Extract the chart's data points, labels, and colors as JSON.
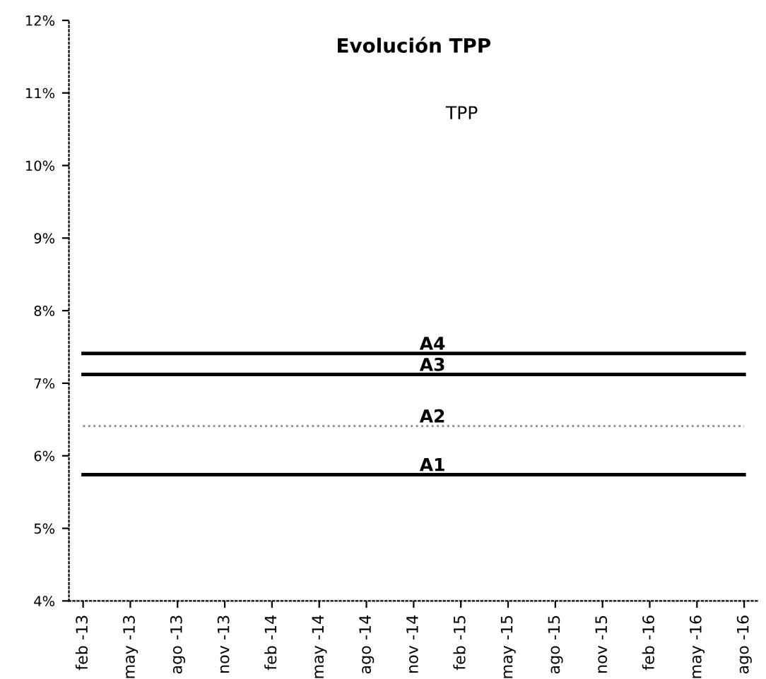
{
  "chart_data": {
    "type": "line",
    "title": "Evolución TPP",
    "categories": [
      "feb -13",
      "may -13",
      "ago -13",
      "nov -13",
      "feb -14",
      "may -14",
      "ago -14",
      "nov -14",
      "feb -15",
      "may -15",
      "ago -15",
      "nov -15",
      "feb -16",
      "may -16",
      "ago -16"
    ],
    "series": [
      {
        "name": "A4",
        "color": "#000000",
        "line_style": "solid",
        "values": [
          7.41,
          7.41,
          7.41,
          7.41,
          7.41,
          7.41,
          7.41,
          7.41,
          7.41,
          7.41,
          7.41,
          7.41,
          7.41,
          7.41,
          7.41
        ]
      },
      {
        "name": "A3",
        "color": "#000000",
        "line_style": "solid",
        "values": [
          7.12,
          7.12,
          7.12,
          7.12,
          7.12,
          7.12,
          7.12,
          7.12,
          7.12,
          7.12,
          7.12,
          7.12,
          7.12,
          7.12,
          7.12
        ]
      },
      {
        "name": "A2",
        "color": "#888888",
        "line_style": "dotted",
        "values": [
          6.41,
          6.41,
          6.41,
          6.41,
          6.41,
          6.41,
          6.41,
          6.41,
          6.41,
          6.41,
          6.41,
          6.41,
          6.41,
          6.41,
          6.41
        ]
      },
      {
        "name": "A1",
        "color": "#000000",
        "line_style": "solid",
        "values": [
          5.74,
          5.74,
          5.74,
          5.74,
          5.74,
          5.74,
          5.74,
          5.74,
          5.74,
          5.74,
          5.74,
          5.74,
          5.74,
          5.74,
          5.74
        ]
      }
    ],
    "annotations": [
      "TPP"
    ],
    "ylim": [
      4,
      12
    ],
    "yticks": [
      {
        "value": 4,
        "label": "4%"
      },
      {
        "value": 5,
        "label": "5%"
      },
      {
        "value": 6,
        "label": "6%"
      },
      {
        "value": 7,
        "label": "7%"
      },
      {
        "value": 8,
        "label": "8%"
      },
      {
        "value": 9,
        "label": "9%"
      },
      {
        "value": 10,
        "label": "10%"
      },
      {
        "value": 11,
        "label": "11%"
      },
      {
        "value": 12,
        "label": "12%"
      }
    ],
    "marker": "none",
    "grid": false,
    "legend": false
  }
}
